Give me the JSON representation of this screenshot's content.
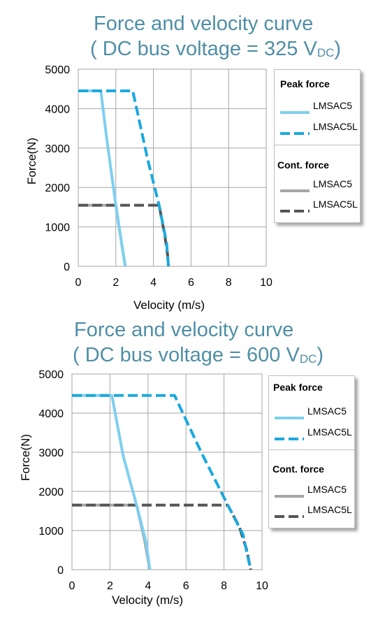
{
  "chart_data": [
    {
      "type": "line",
      "title": "Force and velocity curve",
      "subtitle_prefix": "( DC bus voltage = 325 V",
      "subtitle_sub": "DC",
      "subtitle_suffix": ")",
      "xlabel": "Velocity (m/s)",
      "ylabel": "Force(N)",
      "xlim": [
        0,
        10
      ],
      "ylim": [
        0,
        5000
      ],
      "xticks": [
        "0",
        "2",
        "4",
        "6",
        "8",
        "10"
      ],
      "yticks": [
        "0",
        "1000",
        "2000",
        "3000",
        "4000",
        "5000"
      ],
      "grid": true,
      "legend": {
        "peak_heading": "Peak force",
        "cont_heading": "Cont. force",
        "placement": "right"
      },
      "series": [
        {
          "name": "LMSAC5",
          "group": "Peak force",
          "color": "#7ecff0",
          "style": "solid",
          "x": [
            0,
            1.2,
            1.5,
            2.0,
            2.4,
            2.5
          ],
          "y": [
            4450,
            4450,
            3300,
            1550,
            300,
            0
          ]
        },
        {
          "name": "LMSAC5L",
          "group": "Peak force",
          "color": "#1aa9de",
          "style": "dashed",
          "x": [
            0,
            2.9,
            3.7,
            4.3,
            4.7,
            4.8
          ],
          "y": [
            4450,
            4450,
            2700,
            1550,
            600,
            0
          ]
        },
        {
          "name": "LMSAC5",
          "group": "Cont. force",
          "color": "#a6a6a6",
          "style": "solid",
          "x": [
            0,
            2.0,
            2.2,
            2.4,
            2.5
          ],
          "y": [
            1550,
            1550,
            900,
            300,
            0
          ]
        },
        {
          "name": "LMSAC5L",
          "group": "Cont. force",
          "color": "#555555",
          "style": "dashed",
          "x": [
            0,
            4.3,
            4.6,
            4.75,
            4.8
          ],
          "y": [
            1550,
            1550,
            800,
            300,
            0
          ]
        }
      ]
    },
    {
      "type": "line",
      "title": "Force and velocity curve",
      "subtitle_prefix": "( DC bus voltage = 600 V",
      "subtitle_sub": "DC",
      "subtitle_suffix": ")",
      "xlabel": "Velocity (m/s)",
      "ylabel": "Force(N)",
      "xlim": [
        0,
        10
      ],
      "ylim": [
        0,
        5000
      ],
      "xticks": [
        "0",
        "2",
        "4",
        "6",
        "8",
        "10"
      ],
      "yticks": [
        "0",
        "1000",
        "2000",
        "3000",
        "4000",
        "5000"
      ],
      "grid": true,
      "legend": {
        "peak_heading": "Peak force",
        "cont_heading": "Cont. force",
        "placement": "right"
      },
      "series": [
        {
          "name": "LMSAC5",
          "group": "Peak force",
          "color": "#7ecff0",
          "style": "solid",
          "x": [
            0,
            2.1,
            2.7,
            3.4,
            3.9,
            4.1
          ],
          "y": [
            4450,
            4450,
            2900,
            1650,
            700,
            0
          ]
        },
        {
          "name": "LMSAC5L",
          "group": "Peak force",
          "color": "#1aa9de",
          "style": "dashed",
          "x": [
            0,
            5.4,
            6.8,
            8.2,
            9.0,
            9.4
          ],
          "y": [
            4450,
            4450,
            3000,
            1650,
            900,
            0
          ]
        },
        {
          "name": "LMSAC5",
          "group": "Cont. force",
          "color": "#a6a6a6",
          "style": "solid",
          "x": [
            0,
            3.4,
            3.8,
            4.1
          ],
          "y": [
            1650,
            1650,
            800,
            0
          ]
        },
        {
          "name": "LMSAC5L",
          "group": "Cont. force",
          "color": "#555555",
          "style": "dashed",
          "x": [
            0,
            8.2,
            8.8,
            9.2,
            9.4
          ],
          "y": [
            1650,
            1650,
            1100,
            500,
            0
          ]
        }
      ]
    }
  ]
}
